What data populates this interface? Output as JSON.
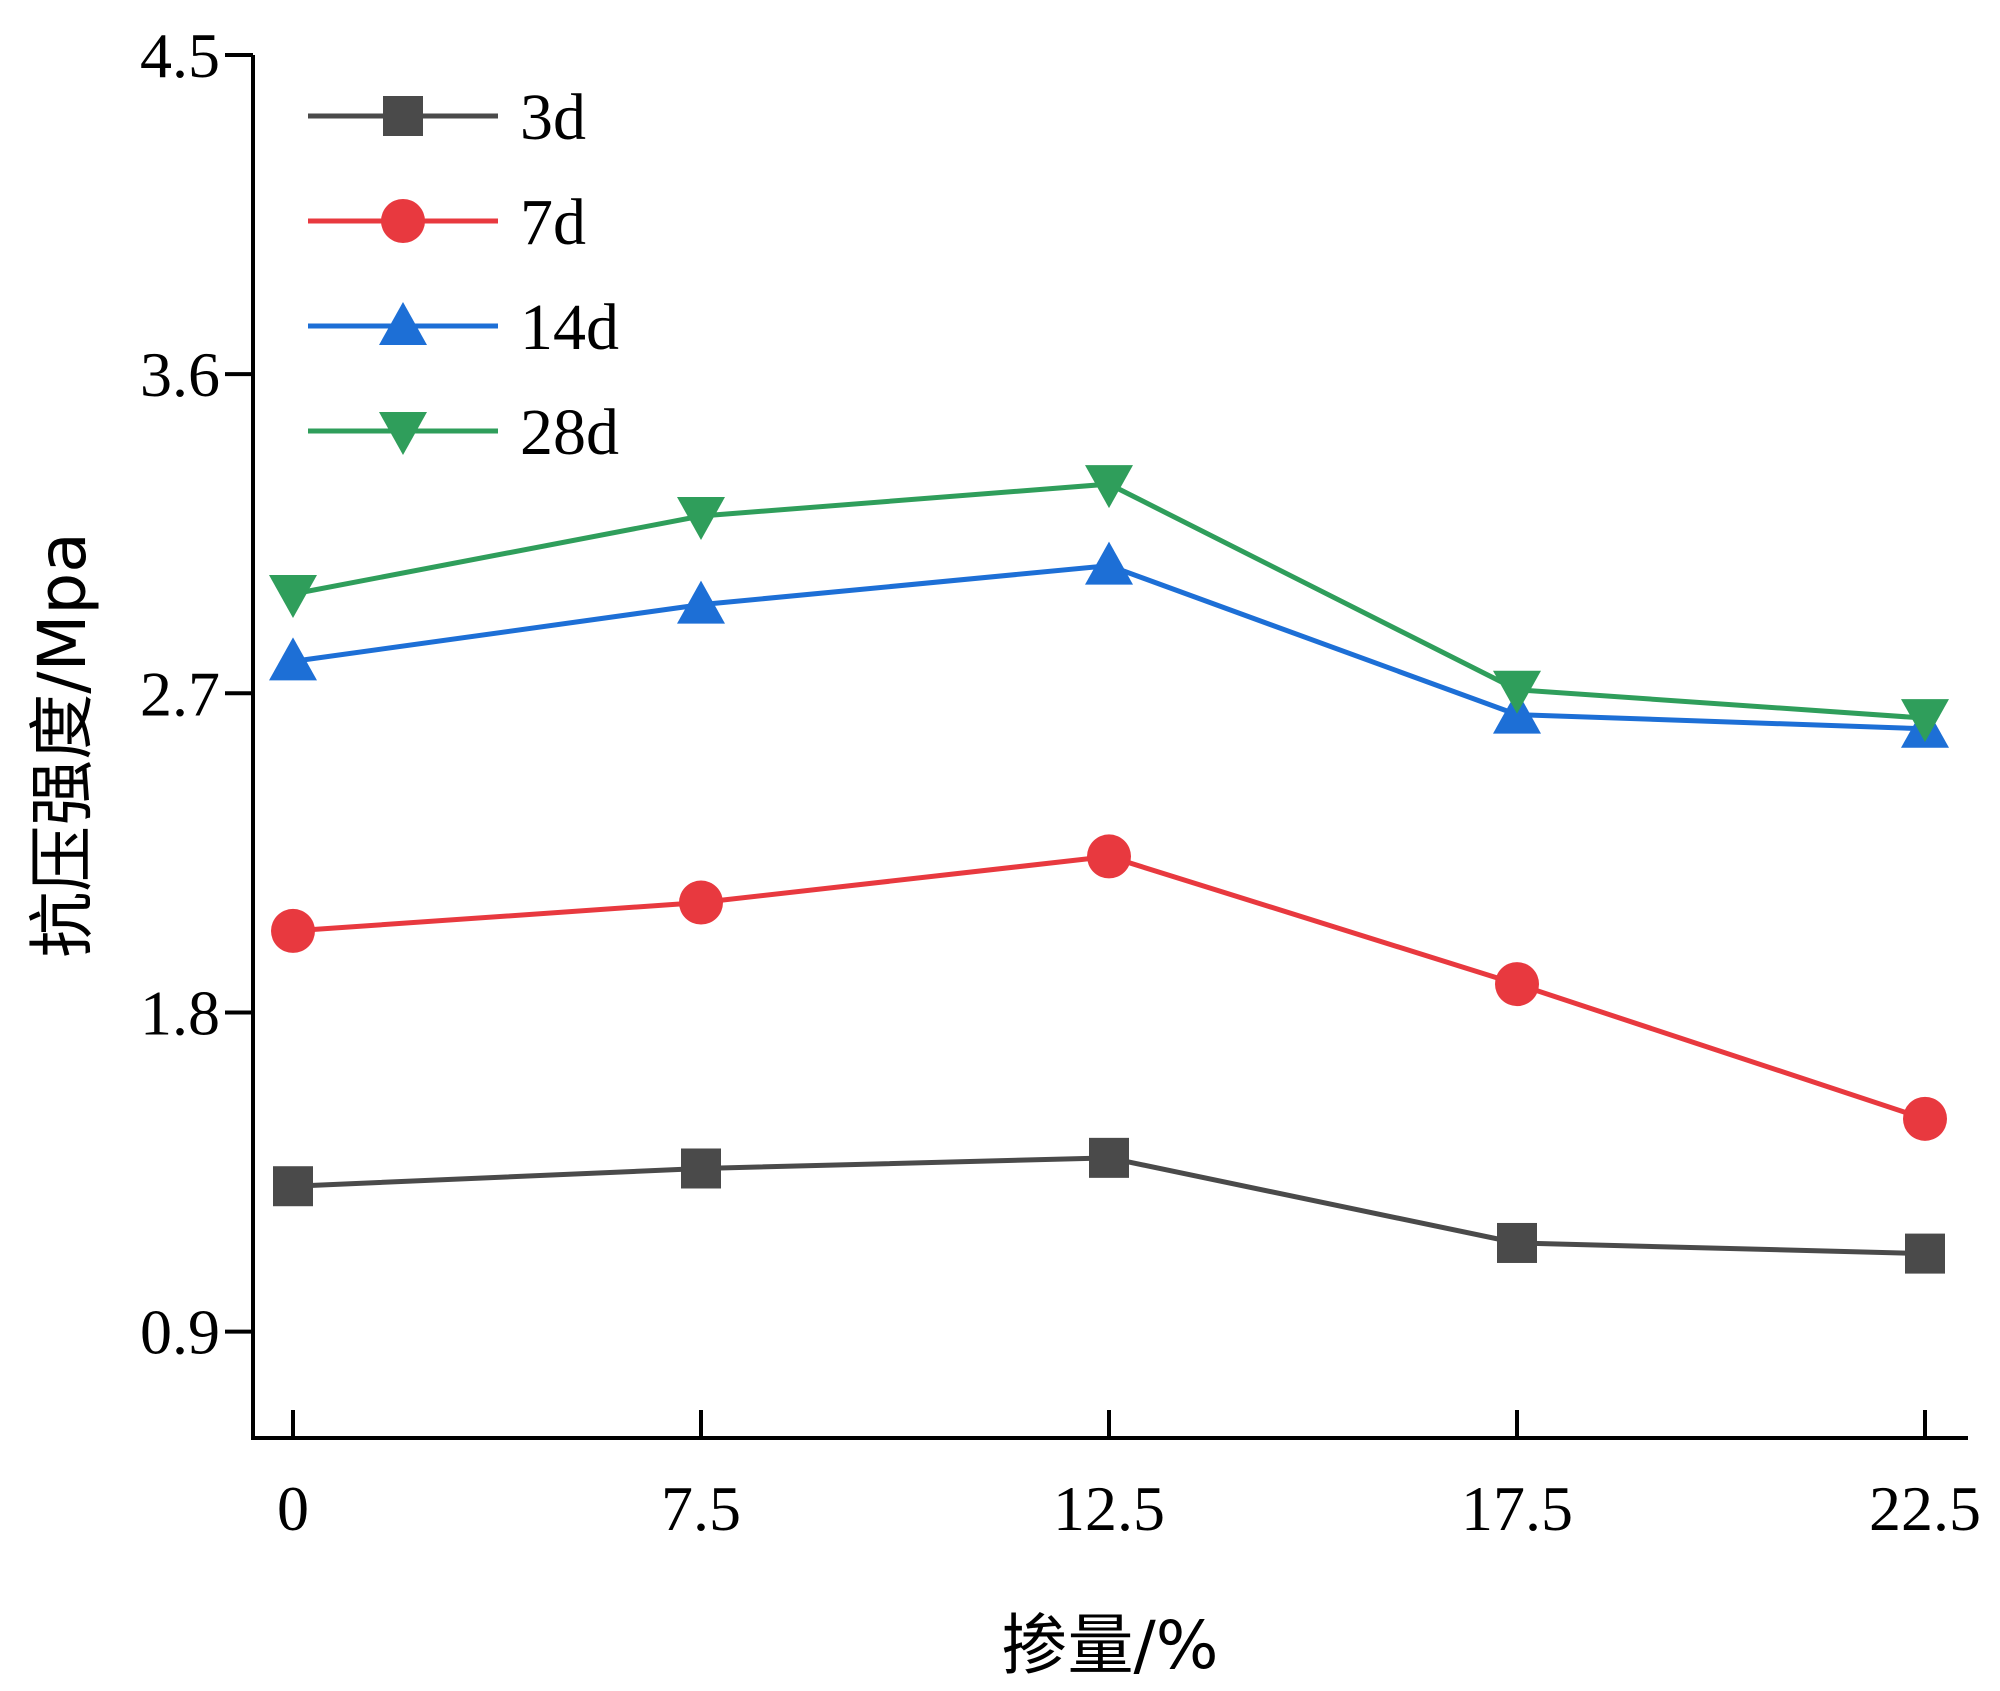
{
  "chart_data": {
    "type": "line",
    "title": "",
    "xlabel": "掺量/%",
    "ylabel": "抗压强度/Mpa",
    "x_tick_labels": [
      "0",
      "7.5",
      "12.5",
      "17.5",
      "22.5"
    ],
    "y_tick_labels": [
      "0.9",
      "1.8",
      "2.7",
      "3.6",
      "4.5"
    ],
    "y_ticks": [
      0.9,
      1.8,
      2.7,
      3.6,
      4.5
    ],
    "ylim": [
      0.6,
      4.5
    ],
    "legend_position": "top-left",
    "series": [
      {
        "name": "3d",
        "color": "#4a4a4a",
        "marker": "square",
        "values": [
          1.31,
          1.36,
          1.39,
          1.15,
          1.12
        ]
      },
      {
        "name": "7d",
        "color": "#e8393f",
        "marker": "circle",
        "values": [
          2.03,
          2.11,
          2.24,
          1.88,
          1.5
        ]
      },
      {
        "name": "14d",
        "color": "#1d6fd6",
        "marker": "triangle-up",
        "values": [
          2.79,
          2.95,
          3.06,
          2.64,
          2.6
        ]
      },
      {
        "name": "28d",
        "color": "#2f9e5b",
        "marker": "triangle-down",
        "values": [
          2.98,
          3.2,
          3.29,
          2.71,
          2.63
        ]
      }
    ]
  }
}
